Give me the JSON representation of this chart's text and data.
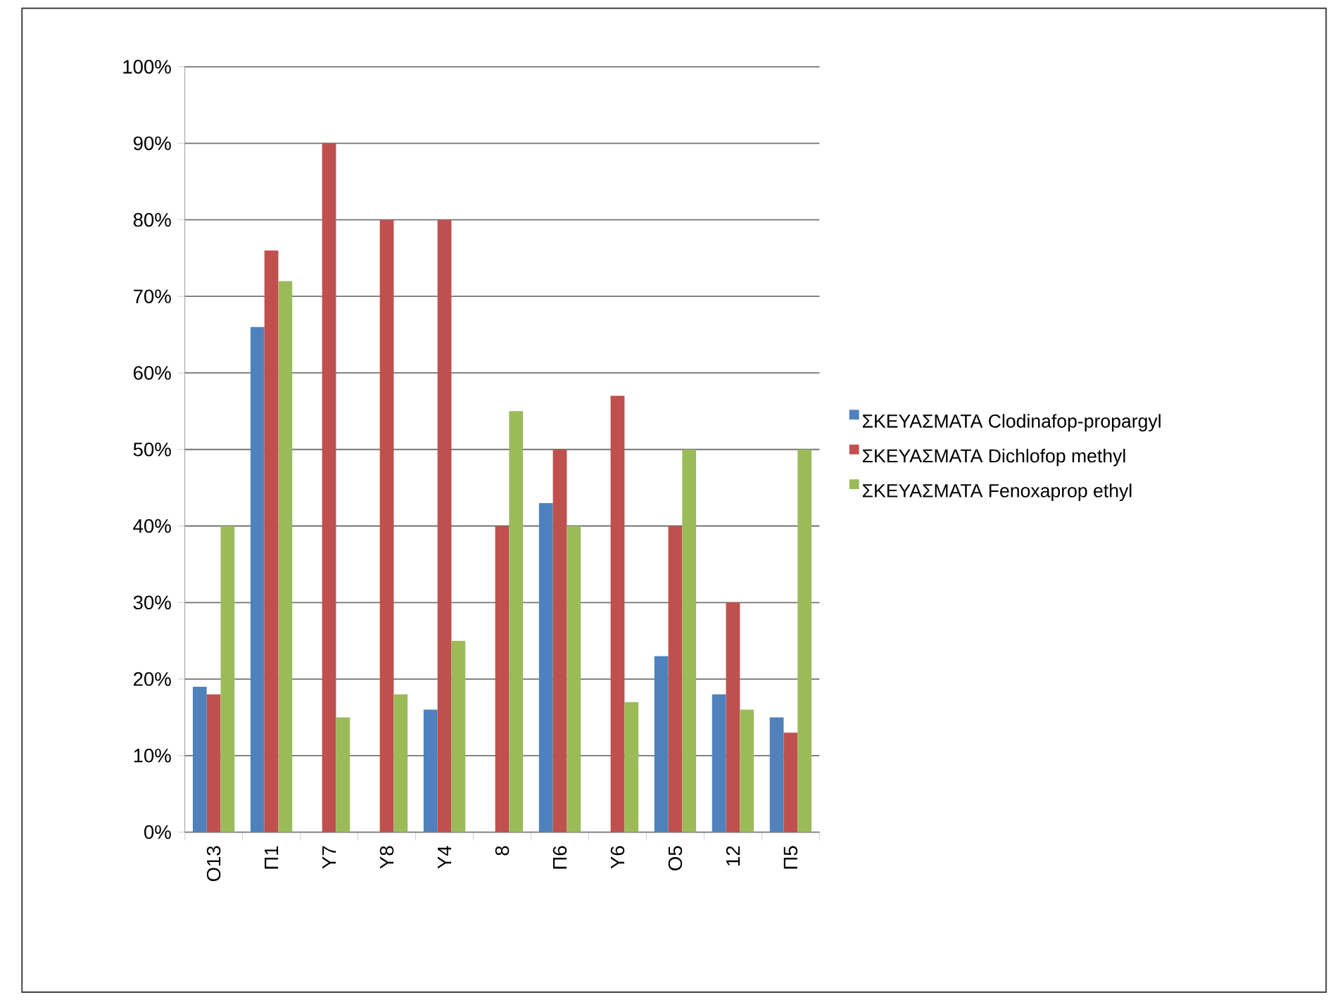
{
  "chart_data": {
    "type": "bar",
    "categories": [
      "Ο13",
      "Π1",
      "Υ7",
      "Υ8",
      "Υ4",
      "8",
      "Π6",
      "Υ6",
      "Ο5",
      "12",
      "Π5"
    ],
    "series": [
      {
        "name": "ΣΚΕΥΑΣΜΑΤΑ Clodinafop-propargyl",
        "color": "#4f81bd",
        "values": [
          19,
          66,
          null,
          null,
          16,
          null,
          43,
          null,
          23,
          18,
          15
        ]
      },
      {
        "name": "ΣΚΕΥΑΣΜΑΤΑ Dichlofop methyl",
        "color": "#c0504d",
        "values": [
          18,
          76,
          90,
          80,
          80,
          40,
          50,
          57,
          40,
          30,
          13
        ]
      },
      {
        "name": "ΣΚΕΥΑΣΜΑΤΑ Fenoxaprop ethyl",
        "color": "#9bbb59",
        "values": [
          40,
          72,
          15,
          18,
          25,
          55,
          40,
          17,
          50,
          16,
          50
        ]
      }
    ],
    "ylim": [
      0,
      100
    ],
    "yticks": [
      {
        "value": 0,
        "label": "0%"
      },
      {
        "value": 10,
        "label": "10%"
      },
      {
        "value": 20,
        "label": "20%"
      },
      {
        "value": 30,
        "label": "30%"
      },
      {
        "value": 40,
        "label": "40%"
      },
      {
        "value": 50,
        "label": "50%"
      },
      {
        "value": 60,
        "label": "60%"
      },
      {
        "value": 70,
        "label": "70%"
      },
      {
        "value": 80,
        "label": "80%"
      },
      {
        "value": 90,
        "label": "90%"
      },
      {
        "value": 100,
        "label": "100%"
      }
    ],
    "grid": "y",
    "legend": "right"
  }
}
